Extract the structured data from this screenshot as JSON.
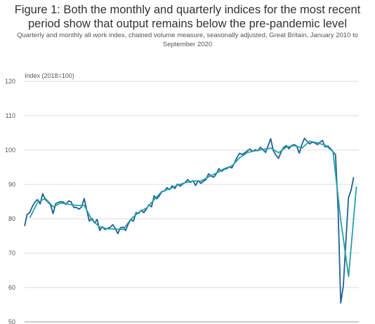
{
  "title": "Figure 1: Both the monthly and quarterly indices for the most recent period show that output remains below the pre-pandemic level",
  "subtitle": "Quarterly and monthly all work index, chained volume measure, seasonally adjusted, Great Britain, January 2010 to September 2020",
  "chart_data": {
    "type": "line",
    "ylabel": "Index (2018=100)",
    "ylim": [
      50,
      120
    ],
    "yticks": [
      50,
      60,
      70,
      80,
      90,
      100,
      110,
      120
    ],
    "grid": true,
    "xlim": [
      2010.0,
      2020.75
    ],
    "series": [
      {
        "color": "#206095",
        "x_start": 2010.0,
        "x_step": 0.0833333,
        "values": [
          77.9,
          81.3,
          81.8,
          83.6,
          84.9,
          85.6,
          84.3,
          87.3,
          85.6,
          84.9,
          84.1,
          81.5,
          84.4,
          84.8,
          85.0,
          84.9,
          84.2,
          85.2,
          84.9,
          83.3,
          83.3,
          82.8,
          83.5,
          85.9,
          82.4,
          79.3,
          80.1,
          78.8,
          79.8,
          76.6,
          77.7,
          76.9,
          77.2,
          77.5,
          78.3,
          77.2,
          75.7,
          77.4,
          77.6,
          76.6,
          78.5,
          79.8,
          79.3,
          81.8,
          81.6,
          82.5,
          81.8,
          82.8,
          84.1,
          83.5,
          86.7,
          85.8,
          86.7,
          87.9,
          88.1,
          89.1,
          88.5,
          89.6,
          88.8,
          90.1,
          89.5,
          90.1,
          90.6,
          91.4,
          90.6,
          91.1,
          89.7,
          91.1,
          90.3,
          90.9,
          91.4,
          93.1,
          92.4,
          92.1,
          93.1,
          94.6,
          93.8,
          94.4,
          94.6,
          95.1,
          94.8,
          96.3,
          97.9,
          99.1,
          98.7,
          99.2,
          99.8,
          100.3,
          99.6,
          100.1,
          99.8,
          100.8,
          100.1,
          99.3,
          101.3,
          103.3,
          99.8,
          98.6,
          97.6,
          99.4,
          100.8,
          101.3,
          100.4,
          101.3,
          101.6,
          101.2,
          99.1,
          101.6,
          103.4,
          102.6,
          101.8,
          102.3,
          102.1,
          101.6,
          102.3,
          102.8,
          100.9,
          101.2,
          100.5,
          99.6,
          98.6,
          82.5,
          55.5,
          60.5,
          73.5,
          86.1,
          88.3,
          92.1
        ]
      },
      {
        "color": "#27a0a8",
        "x": [
          2010.17,
          2010.42,
          2010.67,
          2010.92,
          2011.17,
          2011.42,
          2011.67,
          2011.92,
          2012.17,
          2012.42,
          2012.67,
          2012.92,
          2013.17,
          2013.42,
          2013.67,
          2013.92,
          2014.17,
          2014.42,
          2014.67,
          2014.92,
          2015.17,
          2015.42,
          2015.67,
          2015.92,
          2016.17,
          2016.42,
          2016.67,
          2016.92,
          2017.17,
          2017.42,
          2017.67,
          2017.92,
          2018.17,
          2018.42,
          2018.67,
          2018.92,
          2019.17,
          2019.42,
          2019.67,
          2019.92,
          2020.17,
          2020.42,
          2020.67
        ],
        "values": [
          80.3,
          84.8,
          85.9,
          83.5,
          84.6,
          84.2,
          83.9,
          83.9,
          79.6,
          77.6,
          77.1,
          77.0,
          76.9,
          79.9,
          81.9,
          83.1,
          85.6,
          88.0,
          88.7,
          89.8,
          90.5,
          91.0,
          91.0,
          92.2,
          93.3,
          94.6,
          95.4,
          97.8,
          99.3,
          99.8,
          100.2,
          100.6,
          99.2,
          100.9,
          101.3,
          100.6,
          102.6,
          102.1,
          101.4,
          99.6,
          79.5,
          63.2,
          89.4
        ]
      }
    ]
  }
}
